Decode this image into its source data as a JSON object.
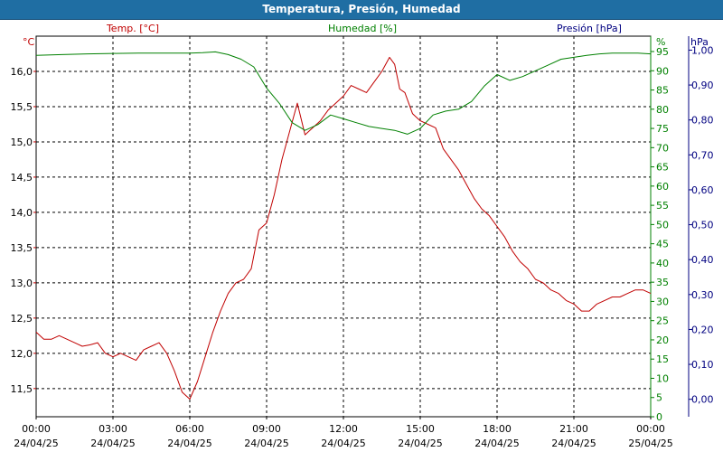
{
  "window": {
    "title": "Temperatura, Presión, Humedad"
  },
  "colors": {
    "background": "#ffffff",
    "title_bar": "#1f6ea3",
    "temperature": "#c00000",
    "humidity": "#008000",
    "pressure": "#000080",
    "grid": "#000000",
    "axis_text": "#000000"
  },
  "chart_data": {
    "type": "line",
    "title": "Temperatura, Presión, Humedad",
    "grid": true,
    "x_axis": {
      "range": [
        "24/04/25 00:00",
        "25/04/25 00:00"
      ],
      "ticks": [
        {
          "time": "00:00",
          "date": "24/04/25",
          "h": 0
        },
        {
          "time": "03:00",
          "date": "24/04/25",
          "h": 3
        },
        {
          "time": "06:00",
          "date": "24/04/25",
          "h": 6
        },
        {
          "time": "09:00",
          "date": "24/04/25",
          "h": 9
        },
        {
          "time": "12:00",
          "date": "24/04/25",
          "h": 12
        },
        {
          "time": "15:00",
          "date": "24/04/25",
          "h": 15
        },
        {
          "time": "18:00",
          "date": "24/04/25",
          "h": 18
        },
        {
          "time": "21:00",
          "date": "24/04/25",
          "h": 21
        },
        {
          "time": "00:00",
          "date": "25/04/25",
          "h": 24
        }
      ]
    },
    "axes": {
      "temperature": {
        "label": "Temp. [°C]",
        "unit": "°C",
        "range": [
          11.1,
          16.5
        ],
        "ticks": [
          "11,5",
          "12,0",
          "12,5",
          "13,0",
          "13,5",
          "14,0",
          "14,5",
          "15,0",
          "15,5",
          "16,0"
        ],
        "tick_values": [
          11.5,
          12.0,
          12.5,
          13.0,
          13.5,
          14.0,
          14.5,
          15.0,
          15.5,
          16.0
        ]
      },
      "humidity": {
        "label": "Humedad [%]",
        "unit": "%",
        "range": [
          0,
          99
        ],
        "ticks": [
          "0",
          "5",
          "10",
          "15",
          "20",
          "25",
          "30",
          "35",
          "40",
          "45",
          "50",
          "55",
          "60",
          "65",
          "70",
          "75",
          "80",
          "85",
          "90",
          "95"
        ],
        "tick_values": [
          0,
          5,
          10,
          15,
          20,
          25,
          30,
          35,
          40,
          45,
          50,
          55,
          60,
          65,
          70,
          75,
          80,
          85,
          90,
          95
        ]
      },
      "pressure": {
        "label": "Presión [hPa]",
        "unit": "hPa",
        "range": [
          -0.05,
          1.04
        ],
        "ticks": [
          "0,00",
          "0,10",
          "0,20",
          "0,30",
          "0,40",
          "0,50",
          "0,60",
          "0,70",
          "0,80",
          "0,90",
          "1,00"
        ],
        "tick_values": [
          0.0,
          0.1,
          0.2,
          0.3,
          0.4,
          0.5,
          0.6,
          0.7,
          0.8,
          0.9,
          1.0
        ]
      }
    },
    "series": [
      {
        "name": "Temp. [°C]",
        "axis": "temperature",
        "color": "#c00000",
        "x_hours": [
          0,
          0.3,
          0.6,
          0.9,
          1.2,
          1.5,
          1.8,
          2.1,
          2.4,
          2.7,
          3.0,
          3.3,
          3.6,
          3.9,
          4.2,
          4.5,
          4.8,
          5.1,
          5.4,
          5.7,
          6.0,
          6.3,
          6.6,
          6.9,
          7.2,
          7.5,
          7.8,
          8.1,
          8.4,
          8.7,
          9.0,
          9.3,
          9.6,
          9.9,
          10.2,
          10.5,
          10.8,
          11.1,
          11.4,
          11.7,
          12.0,
          12.3,
          12.6,
          12.9,
          13.2,
          13.5,
          13.8,
          14.0,
          14.2,
          14.4,
          14.7,
          15.0,
          15.3,
          15.6,
          15.9,
          16.2,
          16.5,
          16.8,
          17.1,
          17.4,
          17.7,
          18.0,
          18.3,
          18.6,
          18.9,
          19.2,
          19.5,
          19.8,
          20.1,
          20.4,
          20.7,
          21.0,
          21.3,
          21.6,
          21.9,
          22.2,
          22.5,
          22.8,
          23.1,
          23.4,
          23.7,
          24.0
        ],
        "values": [
          12.3,
          12.2,
          12.2,
          12.25,
          12.2,
          12.15,
          12.1,
          12.12,
          12.15,
          12.0,
          11.95,
          12.0,
          11.95,
          11.9,
          12.05,
          12.1,
          12.15,
          12.0,
          11.75,
          11.45,
          11.35,
          11.6,
          11.95,
          12.3,
          12.6,
          12.85,
          13.0,
          13.05,
          13.2,
          13.75,
          13.85,
          14.25,
          14.75,
          15.15,
          15.55,
          15.1,
          15.2,
          15.3,
          15.45,
          15.55,
          15.65,
          15.8,
          15.75,
          15.7,
          15.85,
          16.0,
          16.2,
          16.1,
          15.75,
          15.7,
          15.4,
          15.3,
          15.25,
          15.2,
          14.9,
          14.75,
          14.6,
          14.4,
          14.2,
          14.05,
          13.95,
          13.8,
          13.65,
          13.45,
          13.3,
          13.2,
          13.05,
          13.0,
          12.9,
          12.85,
          12.75,
          12.7,
          12.6,
          12.6,
          12.7,
          12.75,
          12.8,
          12.8,
          12.85,
          12.9,
          12.9,
          12.85
        ]
      },
      {
        "name": "Humedad [%]",
        "axis": "humidity",
        "color": "#008000",
        "x_hours": [
          0,
          1,
          2,
          3,
          4,
          5,
          6,
          6.5,
          7.0,
          7.5,
          8.0,
          8.5,
          9.0,
          9.5,
          10.0,
          10.5,
          11.0,
          11.5,
          12.0,
          12.5,
          13.0,
          13.5,
          14.0,
          14.5,
          15.0,
          15.5,
          16.0,
          16.5,
          17.0,
          17.5,
          18.0,
          18.5,
          19.0,
          19.5,
          20.0,
          20.5,
          21.0,
          21.5,
          22.0,
          22.5,
          23.0,
          23.5,
          24.0
        ],
        "values": [
          94,
          94.2,
          94.4,
          94.5,
          94.6,
          94.6,
          94.6,
          94.7,
          94.9,
          94.2,
          93.0,
          91.0,
          85.5,
          81.5,
          76.5,
          74.5,
          76.0,
          78.5,
          77.5,
          76.5,
          75.5,
          75.0,
          74.5,
          73.5,
          75.0,
          78.5,
          79.5,
          80.0,
          82.0,
          86.0,
          89.0,
          87.5,
          88.5,
          90.0,
          91.5,
          93.0,
          93.5,
          94.0,
          94.4,
          94.6,
          94.6,
          94.6,
          94.4
        ]
      }
    ]
  }
}
